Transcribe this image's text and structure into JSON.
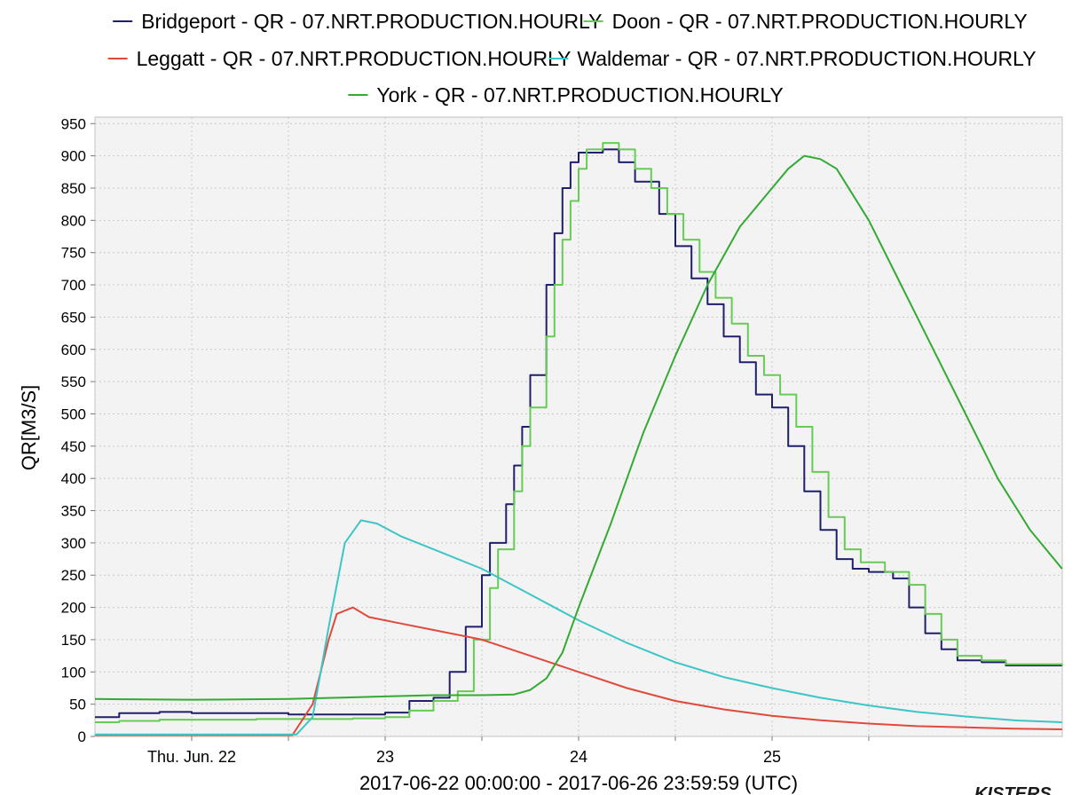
{
  "chart_data": {
    "type": "line",
    "step": true,
    "ylabel": "QR[M3/S]",
    "xlabel": "2017-06-22 00:00:00 - 2017-06-26 23:59:59 (UTC)",
    "ylim": [
      0,
      960
    ],
    "xlim": [
      "2017-06-22T00:00:00",
      "2017-06-27T00:00:00"
    ],
    "yticks": [
      0,
      50,
      100,
      150,
      200,
      250,
      300,
      350,
      400,
      450,
      500,
      550,
      600,
      650,
      700,
      750,
      800,
      850,
      900,
      950
    ],
    "xticks": [
      {
        "label": "Thu. Jun. 22",
        "t": "2017-06-22T12:00:00"
      },
      {
        "label": "23",
        "t": "2017-06-23T12:00:00"
      },
      {
        "label": "24",
        "t": "2017-06-24T12:00:00"
      },
      {
        "label": "25",
        "t": "2017-06-25T12:00:00"
      }
    ],
    "grid": true,
    "legend_position": "top",
    "series": [
      {
        "name": "Bridgeport - QR - 07.NRT.PRODUCTION.HOURLY",
        "color": "#1f1f6b",
        "points": [
          [
            "2017-06-22T00:00",
            30
          ],
          [
            "2017-06-22T03:00",
            36
          ],
          [
            "2017-06-22T08:00",
            38
          ],
          [
            "2017-06-22T12:00",
            36
          ],
          [
            "2017-06-22T20:00",
            36
          ],
          [
            "2017-06-23T00:00",
            34
          ],
          [
            "2017-06-23T06:00",
            34
          ],
          [
            "2017-06-23T12:00",
            37
          ],
          [
            "2017-06-23T15:00",
            55
          ],
          [
            "2017-06-23T18:00",
            60
          ],
          [
            "2017-06-23T20:00",
            100
          ],
          [
            "2017-06-23T22:00",
            170
          ],
          [
            "2017-06-24T00:00",
            250
          ],
          [
            "2017-06-24T01:00",
            300
          ],
          [
            "2017-06-24T03:00",
            360
          ],
          [
            "2017-06-24T04:00",
            420
          ],
          [
            "2017-06-24T05:00",
            480
          ],
          [
            "2017-06-24T06:00",
            560
          ],
          [
            "2017-06-24T08:00",
            700
          ],
          [
            "2017-06-24T09:00",
            780
          ],
          [
            "2017-06-24T10:00",
            850
          ],
          [
            "2017-06-24T11:00",
            890
          ],
          [
            "2017-06-24T12:00",
            905
          ],
          [
            "2017-06-24T15:00",
            910
          ],
          [
            "2017-06-24T17:00",
            890
          ],
          [
            "2017-06-24T19:00",
            860
          ],
          [
            "2017-06-24T22:00",
            810
          ],
          [
            "2017-06-25T00:00",
            760
          ],
          [
            "2017-06-25T02:00",
            710
          ],
          [
            "2017-06-25T04:00",
            670
          ],
          [
            "2017-06-25T06:00",
            620
          ],
          [
            "2017-06-25T08:00",
            580
          ],
          [
            "2017-06-25T10:00",
            530
          ],
          [
            "2017-06-25T12:00",
            510
          ],
          [
            "2017-06-25T14:00",
            450
          ],
          [
            "2017-06-25T16:00",
            380
          ],
          [
            "2017-06-25T18:00",
            320
          ],
          [
            "2017-06-25T20:00",
            275
          ],
          [
            "2017-06-25T22:00",
            260
          ],
          [
            "2017-06-26T00:00",
            255
          ],
          [
            "2017-06-26T03:00",
            245
          ],
          [
            "2017-06-26T05:00",
            200
          ],
          [
            "2017-06-26T07:00",
            160
          ],
          [
            "2017-06-26T09:00",
            135
          ],
          [
            "2017-06-26T11:00",
            118
          ],
          [
            "2017-06-26T14:00",
            115
          ],
          [
            "2017-06-26T17:00",
            110
          ],
          [
            "2017-06-26T23:59",
            110
          ]
        ]
      },
      {
        "name": "Doon - QR - 07.NRT.PRODUCTION.HOURLY",
        "color": "#66cc55",
        "points": [
          [
            "2017-06-22T00:00",
            22
          ],
          [
            "2017-06-22T03:00",
            24
          ],
          [
            "2017-06-22T08:00",
            26
          ],
          [
            "2017-06-22T12:00",
            26
          ],
          [
            "2017-06-22T20:00",
            27
          ],
          [
            "2017-06-23T00:00",
            27
          ],
          [
            "2017-06-23T08:00",
            28
          ],
          [
            "2017-06-23T12:00",
            30
          ],
          [
            "2017-06-23T15:00",
            40
          ],
          [
            "2017-06-23T18:00",
            55
          ],
          [
            "2017-06-23T21:00",
            70
          ],
          [
            "2017-06-23T23:00",
            150
          ],
          [
            "2017-06-24T01:00",
            230
          ],
          [
            "2017-06-24T02:00",
            290
          ],
          [
            "2017-06-24T04:00",
            380
          ],
          [
            "2017-06-24T05:00",
            450
          ],
          [
            "2017-06-24T06:00",
            510
          ],
          [
            "2017-06-24T08:00",
            620
          ],
          [
            "2017-06-24T09:00",
            700
          ],
          [
            "2017-06-24T10:00",
            770
          ],
          [
            "2017-06-24T11:00",
            830
          ],
          [
            "2017-06-24T12:00",
            880
          ],
          [
            "2017-06-24T13:00",
            910
          ],
          [
            "2017-06-24T15:00",
            920
          ],
          [
            "2017-06-24T17:00",
            910
          ],
          [
            "2017-06-24T19:00",
            880
          ],
          [
            "2017-06-24T21:00",
            850
          ],
          [
            "2017-06-24T23:00",
            810
          ],
          [
            "2017-06-25T01:00",
            770
          ],
          [
            "2017-06-25T03:00",
            720
          ],
          [
            "2017-06-25T05:00",
            680
          ],
          [
            "2017-06-25T07:00",
            640
          ],
          [
            "2017-06-25T09:00",
            590
          ],
          [
            "2017-06-25T11:00",
            560
          ],
          [
            "2017-06-25T13:00",
            530
          ],
          [
            "2017-06-25T15:00",
            480
          ],
          [
            "2017-06-25T17:00",
            410
          ],
          [
            "2017-06-25T19:00",
            340
          ],
          [
            "2017-06-25T21:00",
            290
          ],
          [
            "2017-06-25T23:00",
            270
          ],
          [
            "2017-06-26T02:00",
            255
          ],
          [
            "2017-06-26T05:00",
            235
          ],
          [
            "2017-06-26T07:00",
            190
          ],
          [
            "2017-06-26T09:00",
            150
          ],
          [
            "2017-06-26T11:00",
            125
          ],
          [
            "2017-06-26T14:00",
            118
          ],
          [
            "2017-06-26T17:00",
            112
          ],
          [
            "2017-06-26T23:59",
            110
          ]
        ]
      },
      {
        "name": "Leggatt - QR - 07.NRT.PRODUCTION.HOURLY",
        "color": "#e04a3c",
        "points": [
          [
            "2017-06-22T00:00",
            2
          ],
          [
            "2017-06-22T12:00",
            2
          ],
          [
            "2017-06-23T00:00",
            2
          ],
          [
            "2017-06-23T00:30",
            2
          ],
          [
            "2017-06-23T03:00",
            50
          ],
          [
            "2017-06-23T05:00",
            150
          ],
          [
            "2017-06-23T06:00",
            190
          ],
          [
            "2017-06-23T08:00",
            200
          ],
          [
            "2017-06-23T10:00",
            185
          ],
          [
            "2017-06-23T14:00",
            175
          ],
          [
            "2017-06-23T18:00",
            165
          ],
          [
            "2017-06-24T00:00",
            150
          ],
          [
            "2017-06-24T06:00",
            125
          ],
          [
            "2017-06-24T12:00",
            100
          ],
          [
            "2017-06-24T18:00",
            75
          ],
          [
            "2017-06-25T00:00",
            55
          ],
          [
            "2017-06-25T06:00",
            42
          ],
          [
            "2017-06-25T12:00",
            32
          ],
          [
            "2017-06-25T18:00",
            25
          ],
          [
            "2017-06-26T00:00",
            20
          ],
          [
            "2017-06-26T06:00",
            16
          ],
          [
            "2017-06-26T12:00",
            14
          ],
          [
            "2017-06-26T18:00",
            12
          ],
          [
            "2017-06-26T23:59",
            11
          ]
        ]
      },
      {
        "name": "Waldemar - QR - 07.NRT.PRODUCTION.HOURLY",
        "color": "#3ec5c5",
        "points": [
          [
            "2017-06-22T00:00",
            3
          ],
          [
            "2017-06-22T12:00",
            3
          ],
          [
            "2017-06-23T00:00",
            3
          ],
          [
            "2017-06-23T01:00",
            3
          ],
          [
            "2017-06-23T03:00",
            30
          ],
          [
            "2017-06-23T05:00",
            170
          ],
          [
            "2017-06-23T07:00",
            300
          ],
          [
            "2017-06-23T09:00",
            335
          ],
          [
            "2017-06-23T11:00",
            330
          ],
          [
            "2017-06-23T14:00",
            310
          ],
          [
            "2017-06-23T18:00",
            290
          ],
          [
            "2017-06-24T00:00",
            260
          ],
          [
            "2017-06-24T06:00",
            220
          ],
          [
            "2017-06-24T12:00",
            180
          ],
          [
            "2017-06-24T18:00",
            145
          ],
          [
            "2017-06-25T00:00",
            115
          ],
          [
            "2017-06-25T06:00",
            92
          ],
          [
            "2017-06-25T12:00",
            75
          ],
          [
            "2017-06-25T18:00",
            60
          ],
          [
            "2017-06-26T00:00",
            48
          ],
          [
            "2017-06-26T06:00",
            38
          ],
          [
            "2017-06-26T12:00",
            31
          ],
          [
            "2017-06-26T18:00",
            25
          ],
          [
            "2017-06-26T23:59",
            22
          ]
        ]
      },
      {
        "name": "York - QR - 07.NRT.PRODUCTION.HOURLY",
        "color": "#33aa33",
        "points": [
          [
            "2017-06-22T00:00",
            58
          ],
          [
            "2017-06-22T12:00",
            57
          ],
          [
            "2017-06-23T00:00",
            58
          ],
          [
            "2017-06-23T06:00",
            60
          ],
          [
            "2017-06-23T12:00",
            62
          ],
          [
            "2017-06-23T18:00",
            64
          ],
          [
            "2017-06-24T00:00",
            64
          ],
          [
            "2017-06-24T04:00",
            65
          ],
          [
            "2017-06-24T06:00",
            72
          ],
          [
            "2017-06-24T08:00",
            90
          ],
          [
            "2017-06-24T10:00",
            130
          ],
          [
            "2017-06-24T12:00",
            200
          ],
          [
            "2017-06-24T16:00",
            330
          ],
          [
            "2017-06-24T20:00",
            470
          ],
          [
            "2017-06-25T00:00",
            590
          ],
          [
            "2017-06-25T04:00",
            700
          ],
          [
            "2017-06-25T08:00",
            790
          ],
          [
            "2017-06-25T12:00",
            850
          ],
          [
            "2017-06-25T14:00",
            880
          ],
          [
            "2017-06-25T16:00",
            900
          ],
          [
            "2017-06-25T18:00",
            895
          ],
          [
            "2017-06-25T20:00",
            880
          ],
          [
            "2017-06-26T00:00",
            800
          ],
          [
            "2017-06-26T04:00",
            700
          ],
          [
            "2017-06-26T08:00",
            600
          ],
          [
            "2017-06-26T12:00",
            500
          ],
          [
            "2017-06-26T16:00",
            400
          ],
          [
            "2017-06-26T20:00",
            320
          ],
          [
            "2017-06-26T23:59",
            260
          ]
        ]
      }
    ]
  },
  "footer": {
    "logo_text": "KISTERS"
  }
}
